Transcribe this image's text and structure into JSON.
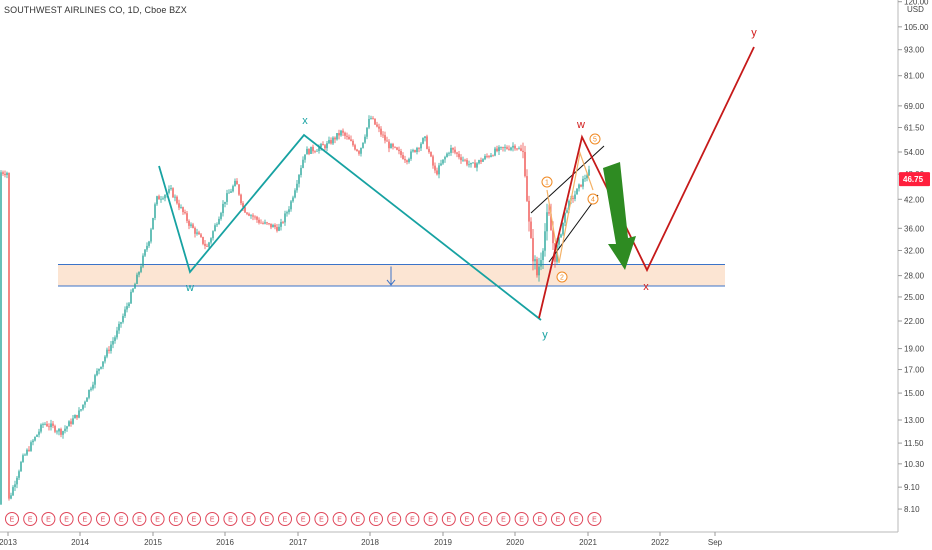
{
  "header": {
    "title": "SOUTHWEST AIRLINES CO, 1D, Cboe BZX",
    "currency": "USD"
  },
  "chart_data": {
    "type": "line",
    "symbol": "SOUTHWEST AIRLINES CO",
    "interval": "1D",
    "exchange": "Cboe BZX",
    "y_scale": "log",
    "y_ticks": [
      "120.00",
      "105.00",
      "93.00",
      "81.00",
      "69.00",
      "61.50",
      "54.00",
      "48.00",
      "42.00",
      "36.00",
      "32.00",
      "28.00",
      "25.00",
      "22.00",
      "19.00",
      "17.00",
      "15.00",
      "13.00",
      "11.50",
      "10.30",
      "9.10",
      "8.10"
    ],
    "x_ticks": [
      "2013",
      "2014",
      "2015",
      "2016",
      "2017",
      "2018",
      "2019",
      "2020",
      "2021",
      "2022",
      "Sep"
    ],
    "last_price": "46.75",
    "last_price_color": "#ff1f3d",
    "price_series_approx": [
      [
        "2013.0",
        8.3
      ],
      [
        "2013.2",
        10.5
      ],
      [
        "2013.5",
        12.8
      ],
      [
        "2013.75",
        12.2
      ],
      [
        "2014.0",
        13.6
      ],
      [
        "2014.25",
        17.0
      ],
      [
        "2014.5",
        20.5
      ],
      [
        "2014.75",
        26.5
      ],
      [
        "2014.95",
        34.0
      ],
      [
        "2015.05",
        42.0
      ],
      [
        "2015.25",
        44.0
      ],
      [
        "2015.5",
        37.0
      ],
      [
        "2015.75",
        32.5
      ],
      [
        "2016.0",
        42.0
      ],
      [
        "2016.15",
        46.0
      ],
      [
        "2016.25",
        40.0
      ],
      [
        "2016.5",
        37.0
      ],
      [
        "2016.75",
        36.0
      ],
      [
        "2016.9",
        41.0
      ],
      [
        "2017.1",
        54.0
      ],
      [
        "2017.4",
        56.0
      ],
      [
        "2017.6",
        60.0
      ],
      [
        "2017.85",
        54.0
      ],
      [
        "2018.0",
        65.0
      ],
      [
        "2018.25",
        56.0
      ],
      [
        "2018.5",
        52.0
      ],
      [
        "2018.75",
        58.0
      ],
      [
        "2018.9",
        48.0
      ],
      [
        "2019.1",
        55.0
      ],
      [
        "2019.4",
        50.0
      ],
      [
        "2019.7",
        54.0
      ],
      [
        "2020.0",
        56.0
      ],
      [
        "2020.12",
        53.0
      ],
      [
        "2020.2",
        34.0
      ],
      [
        "2020.3",
        28.0
      ],
      [
        "2020.45",
        39.0
      ],
      [
        "2020.55",
        31.0
      ],
      [
        "2020.7",
        40.0
      ],
      [
        "2020.85",
        44.0
      ],
      [
        "2021.0",
        48.5
      ]
    ],
    "wave_labels": [
      {
        "text": "w",
        "color": "#17a2a2"
      },
      {
        "text": "x",
        "color": "#17a2a2"
      },
      {
        "text": "y",
        "color": "#17a2a2"
      },
      {
        "text": "w",
        "color": "#d11a1a"
      },
      {
        "text": "x",
        "color": "#d11a1a"
      },
      {
        "text": "y",
        "color": "#d11a1a"
      }
    ],
    "sub_wave_labels": [
      "1",
      "2",
      "4",
      "5"
    ],
    "support_zone": {
      "from": 26.5,
      "to": 29.7
    },
    "earnings_marker": "E",
    "earnings_count": 34
  }
}
